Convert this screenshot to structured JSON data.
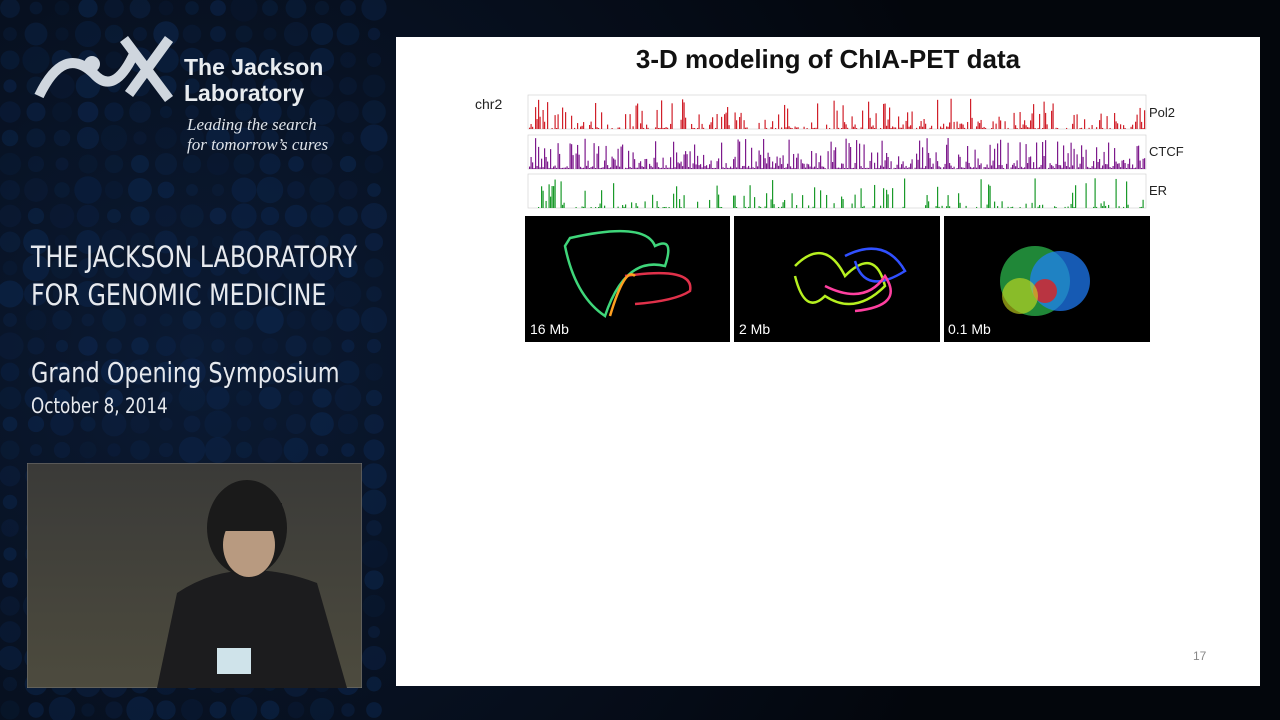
{
  "logo": {
    "name_lines": [
      "The Jackson",
      "Laboratory"
    ],
    "tagline_lines": [
      "Leading the search",
      "for tomorrow’s cures"
    ]
  },
  "event": {
    "title_lines": [
      "THE JACKSON LABORATORY",
      "FOR GENOMIC MEDICINE"
    ],
    "subtitle": "Grand Opening Symposium",
    "date": "October 8, 2014"
  },
  "slide": {
    "title": "3-D modeling of ChIA-PET data",
    "chromosome": "chr2",
    "tracks": [
      "Pol2",
      "CTCF",
      "ER"
    ],
    "panels": [
      "16 Mb",
      "2 Mb",
      "0.1 Mb"
    ],
    "page_number": "17"
  }
}
